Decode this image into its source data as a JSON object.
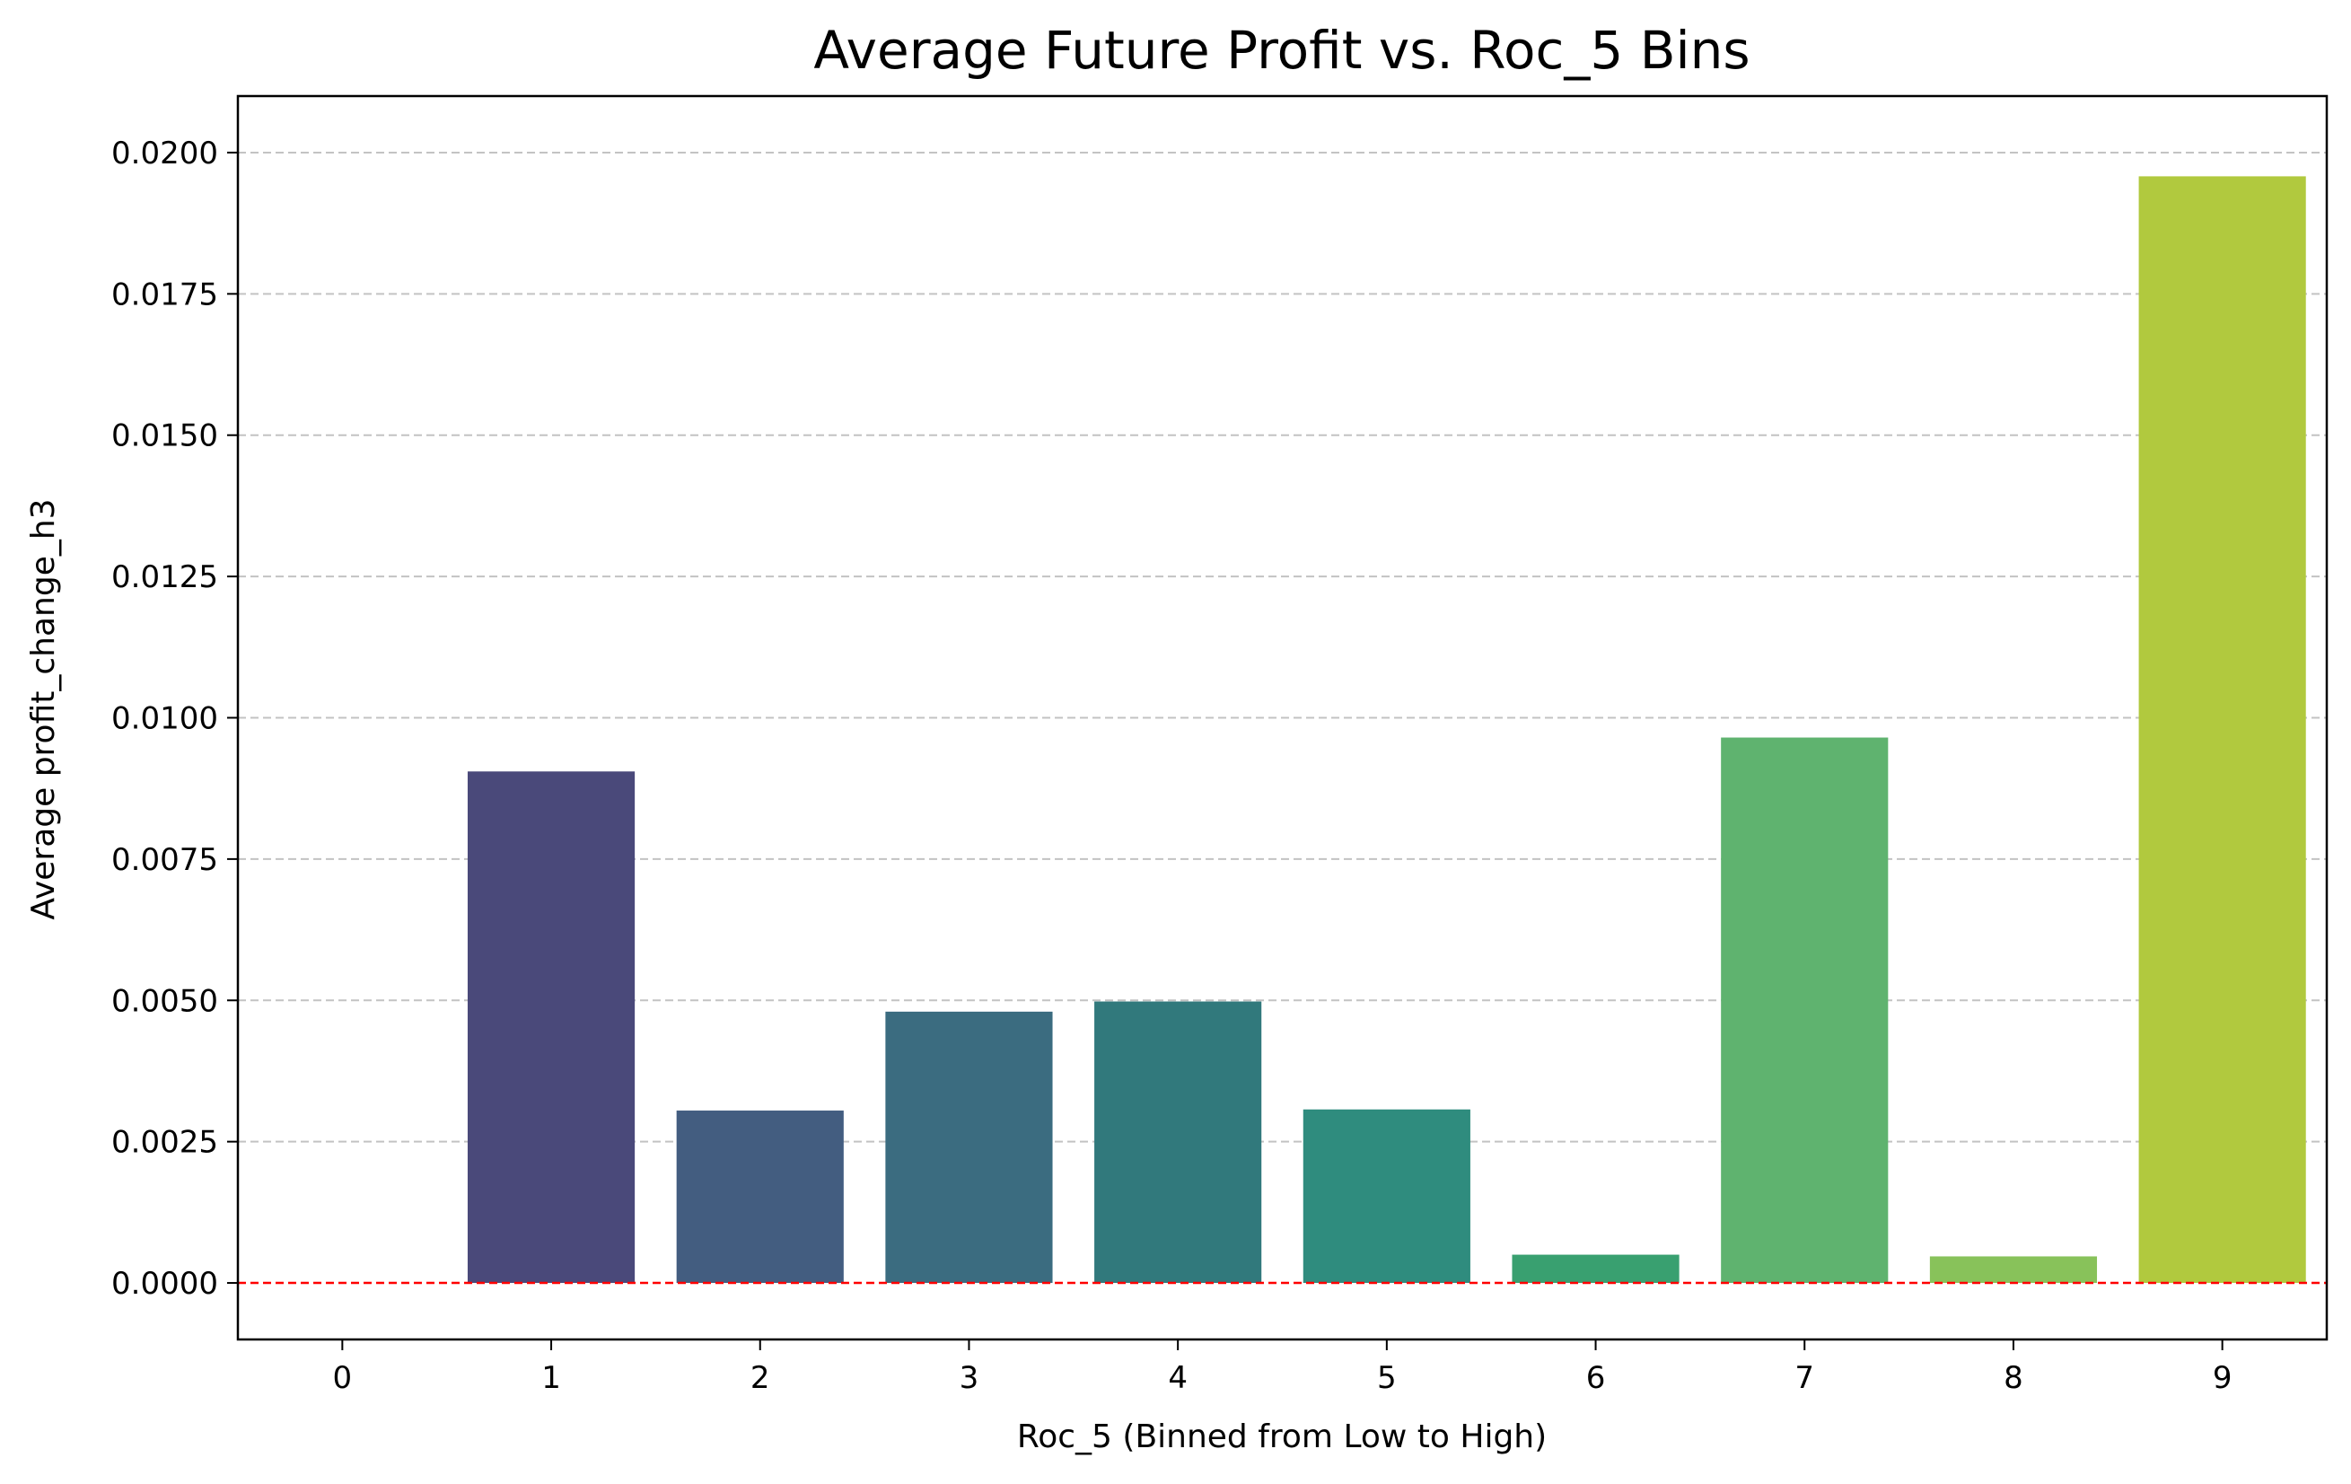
{
  "chart_data": {
    "type": "bar",
    "title": "Average Future Profit vs. Roc_5 Bins",
    "xlabel": "Roc_5 (Binned from Low to High)",
    "ylabel": "Average profit_change_h3",
    "categories": [
      "0",
      "1",
      "2",
      "3",
      "4",
      "5",
      "6",
      "7",
      "8",
      "9"
    ],
    "values": [
      0.0,
      0.00905,
      0.00305,
      0.0048,
      0.00498,
      0.00307,
      0.0005,
      0.00965,
      0.00047,
      0.01958
    ],
    "colors": [
      "#472d7b",
      "#4a497a",
      "#435d80",
      "#3b6c80",
      "#31797c",
      "#2f8c7e",
      "#39a070",
      "#5fb36f",
      "#88c25a",
      "#b1c93e"
    ],
    "ylim": [
      -0.001,
      0.021
    ],
    "yticks": [
      0.0,
      0.0025,
      0.005,
      0.0075,
      0.01,
      0.0125,
      0.015,
      0.0175,
      0.02
    ],
    "ytick_labels": [
      "0.0000",
      "0.0025",
      "0.0050",
      "0.0075",
      "0.0100",
      "0.0125",
      "0.0150",
      "0.0175",
      "0.0200"
    ],
    "grid": "y-dashed",
    "reference_line": {
      "y": 0.0,
      "color": "#ff0000",
      "style": "dashed"
    }
  }
}
